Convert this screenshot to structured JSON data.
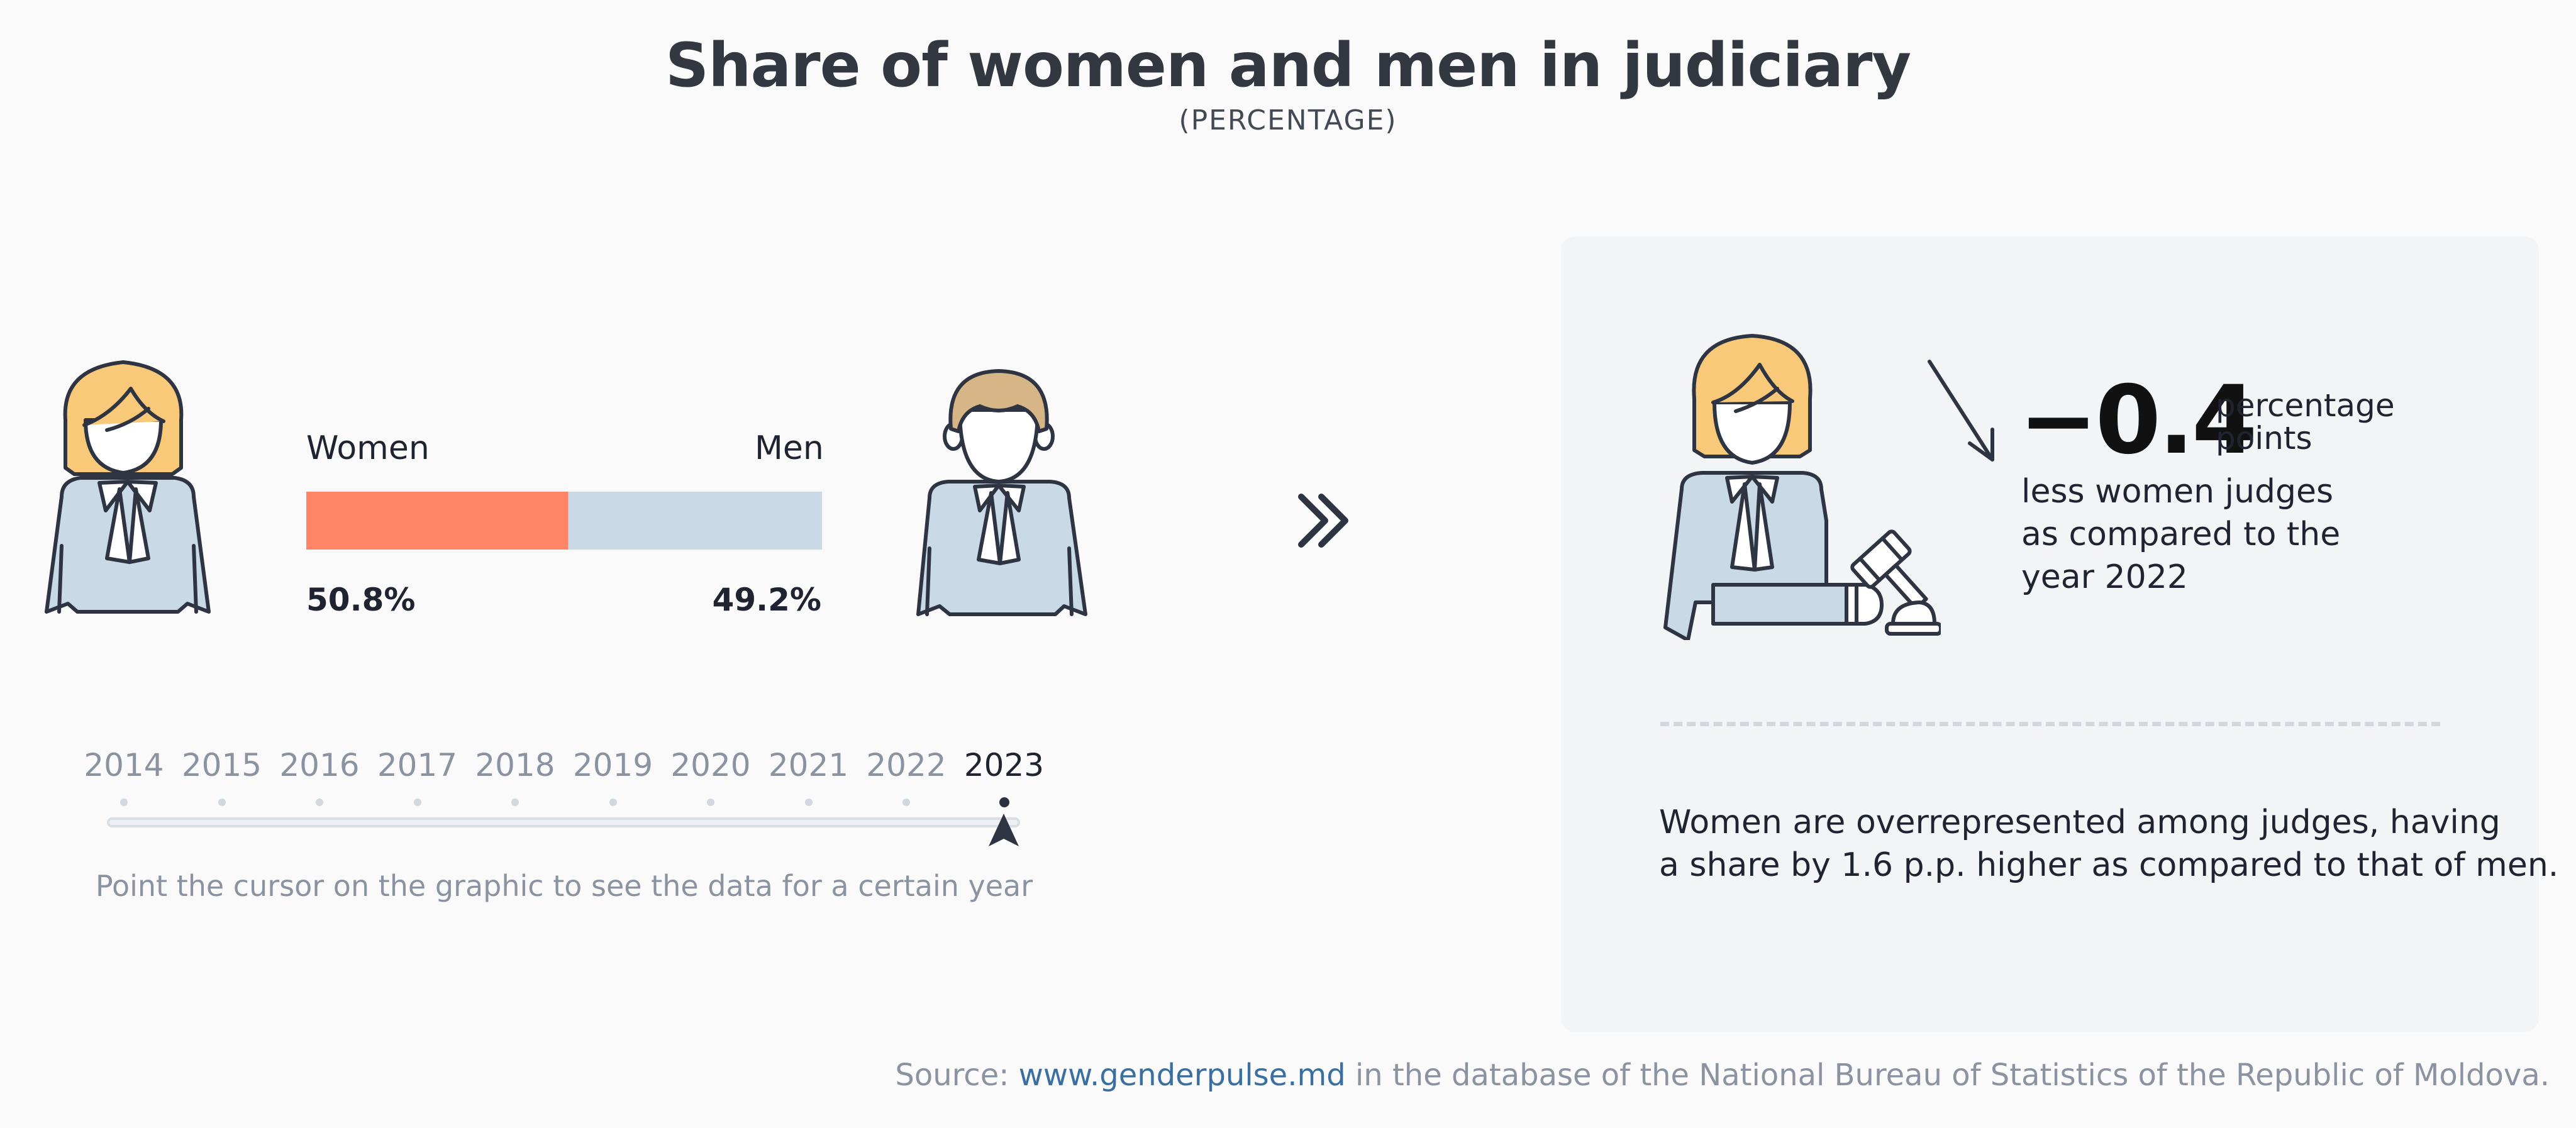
{
  "title": "Share of women and men in judiciary",
  "subtitle": "(PERCENTAGE)",
  "chart_data": {
    "type": "bar",
    "orientation": "horizontal-stacked",
    "year": "2023",
    "categories": [
      "Women",
      "Men"
    ],
    "values": [
      50.8,
      49.2
    ],
    "value_labels": [
      "50.8%",
      "49.2%"
    ],
    "colors": {
      "Women": "#ff8566",
      "Men": "#c9d9e6"
    },
    "xlim": [
      0,
      100
    ]
  },
  "timeline": {
    "years": [
      "2014",
      "2015",
      "2016",
      "2017",
      "2018",
      "2019",
      "2020",
      "2021",
      "2022",
      "2023"
    ],
    "selected": "2023",
    "hint": "Point the cursor on the graphic to see the data for a certain year"
  },
  "next_icon": "double-chevron-right-icon",
  "panel": {
    "big_value": "−0.4",
    "unit_lines": [
      "percentage",
      "points"
    ],
    "description_lines": [
      "less women judges",
      "as compared to the",
      "year 2022"
    ],
    "trend": "down",
    "note_lines": [
      "Women are overrepresented among judges, having",
      "a share by 1.6 p.p. higher as compared to that of men."
    ]
  },
  "source": {
    "prefix": "Source: ",
    "link": "www.genderpulse.md",
    "suffix": " in the database of the National Bureau of Statistics of the Republic of Moldova."
  },
  "colors": {
    "women": "#ff8566",
    "men": "#c9d9e6",
    "hair_women": "#f9c97a",
    "hair_men": "#d6b586",
    "outline": "#2f3442",
    "robe": "#c9d9e6"
  }
}
